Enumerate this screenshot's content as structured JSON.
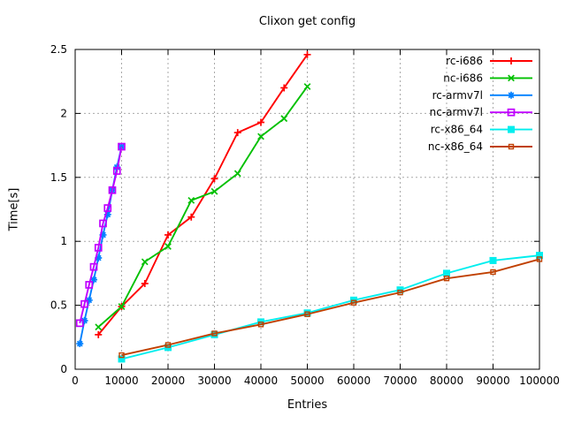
{
  "chart_data": {
    "type": "line",
    "title": "Clixon get config",
    "xlabel": "Entries",
    "ylabel": "Time[s]",
    "xlim": [
      0,
      100000
    ],
    "ylim": [
      0,
      2.5
    ],
    "xticks": [
      0,
      10000,
      20000,
      30000,
      40000,
      50000,
      60000,
      70000,
      80000,
      90000,
      100000
    ],
    "xtick_labels": [
      "0",
      "10000",
      "20000",
      "30000",
      "40000",
      "50000",
      "60000",
      "70000",
      "80000",
      "90000",
      "100000"
    ],
    "yticks": [
      0,
      0.5,
      1,
      1.5,
      2,
      2.5
    ],
    "ytick_labels": [
      "0",
      "0.5",
      "1",
      "1.5",
      "2",
      "2.5"
    ],
    "grid": true,
    "legend_position": "top-right-inside",
    "colors": {
      "axis": "#000000",
      "grid": "#a9a9a9",
      "background": "#ffffff"
    },
    "series": [
      {
        "name": "rc-i686",
        "color": "#ff0000",
        "marker": "plus",
        "x": [
          5000,
          10000,
          15000,
          20000,
          25000,
          30000,
          35000,
          40000,
          45000,
          50000
        ],
        "y": [
          0.27,
          0.49,
          0.67,
          1.05,
          1.19,
          1.49,
          1.85,
          1.93,
          2.2,
          2.46
        ]
      },
      {
        "name": "nc-i686",
        "color": "#00c000",
        "marker": "cross",
        "x": [
          5000,
          10000,
          15000,
          20000,
          25000,
          30000,
          35000,
          40000,
          45000,
          50000
        ],
        "y": [
          0.33,
          0.49,
          0.84,
          0.96,
          1.32,
          1.39,
          1.53,
          1.82,
          1.96,
          2.21
        ]
      },
      {
        "name": "rc-armv7l",
        "color": "#0080ff",
        "marker": "asterisk",
        "x": [
          1000,
          2000,
          3000,
          4000,
          5000,
          6000,
          7000,
          8000,
          9000,
          10000
        ],
        "y": [
          0.2,
          0.38,
          0.54,
          0.7,
          0.87,
          1.05,
          1.21,
          1.4,
          1.58,
          1.74
        ]
      },
      {
        "name": "nc-armv7l",
        "color": "#c000ff",
        "marker": "open-square",
        "x": [
          1000,
          2000,
          3000,
          4000,
          5000,
          6000,
          7000,
          8000,
          9000,
          10000
        ],
        "y": [
          0.36,
          0.51,
          0.66,
          0.8,
          0.95,
          1.14,
          1.26,
          1.4,
          1.55,
          1.74
        ]
      },
      {
        "name": "rc-x86_64",
        "color": "#00eeee",
        "marker": "filled-square",
        "x": [
          10000,
          20000,
          30000,
          40000,
          50000,
          60000,
          70000,
          80000,
          90000,
          100000
        ],
        "y": [
          0.08,
          0.17,
          0.27,
          0.37,
          0.44,
          0.54,
          0.62,
          0.75,
          0.85,
          0.89
        ]
      },
      {
        "name": "nc-x86_64",
        "color": "#c04000",
        "marker": "small-open-square",
        "x": [
          10000,
          20000,
          30000,
          40000,
          50000,
          60000,
          70000,
          80000,
          90000,
          100000
        ],
        "y": [
          0.11,
          0.19,
          0.28,
          0.35,
          0.43,
          0.52,
          0.6,
          0.71,
          0.76,
          0.86
        ]
      }
    ]
  }
}
